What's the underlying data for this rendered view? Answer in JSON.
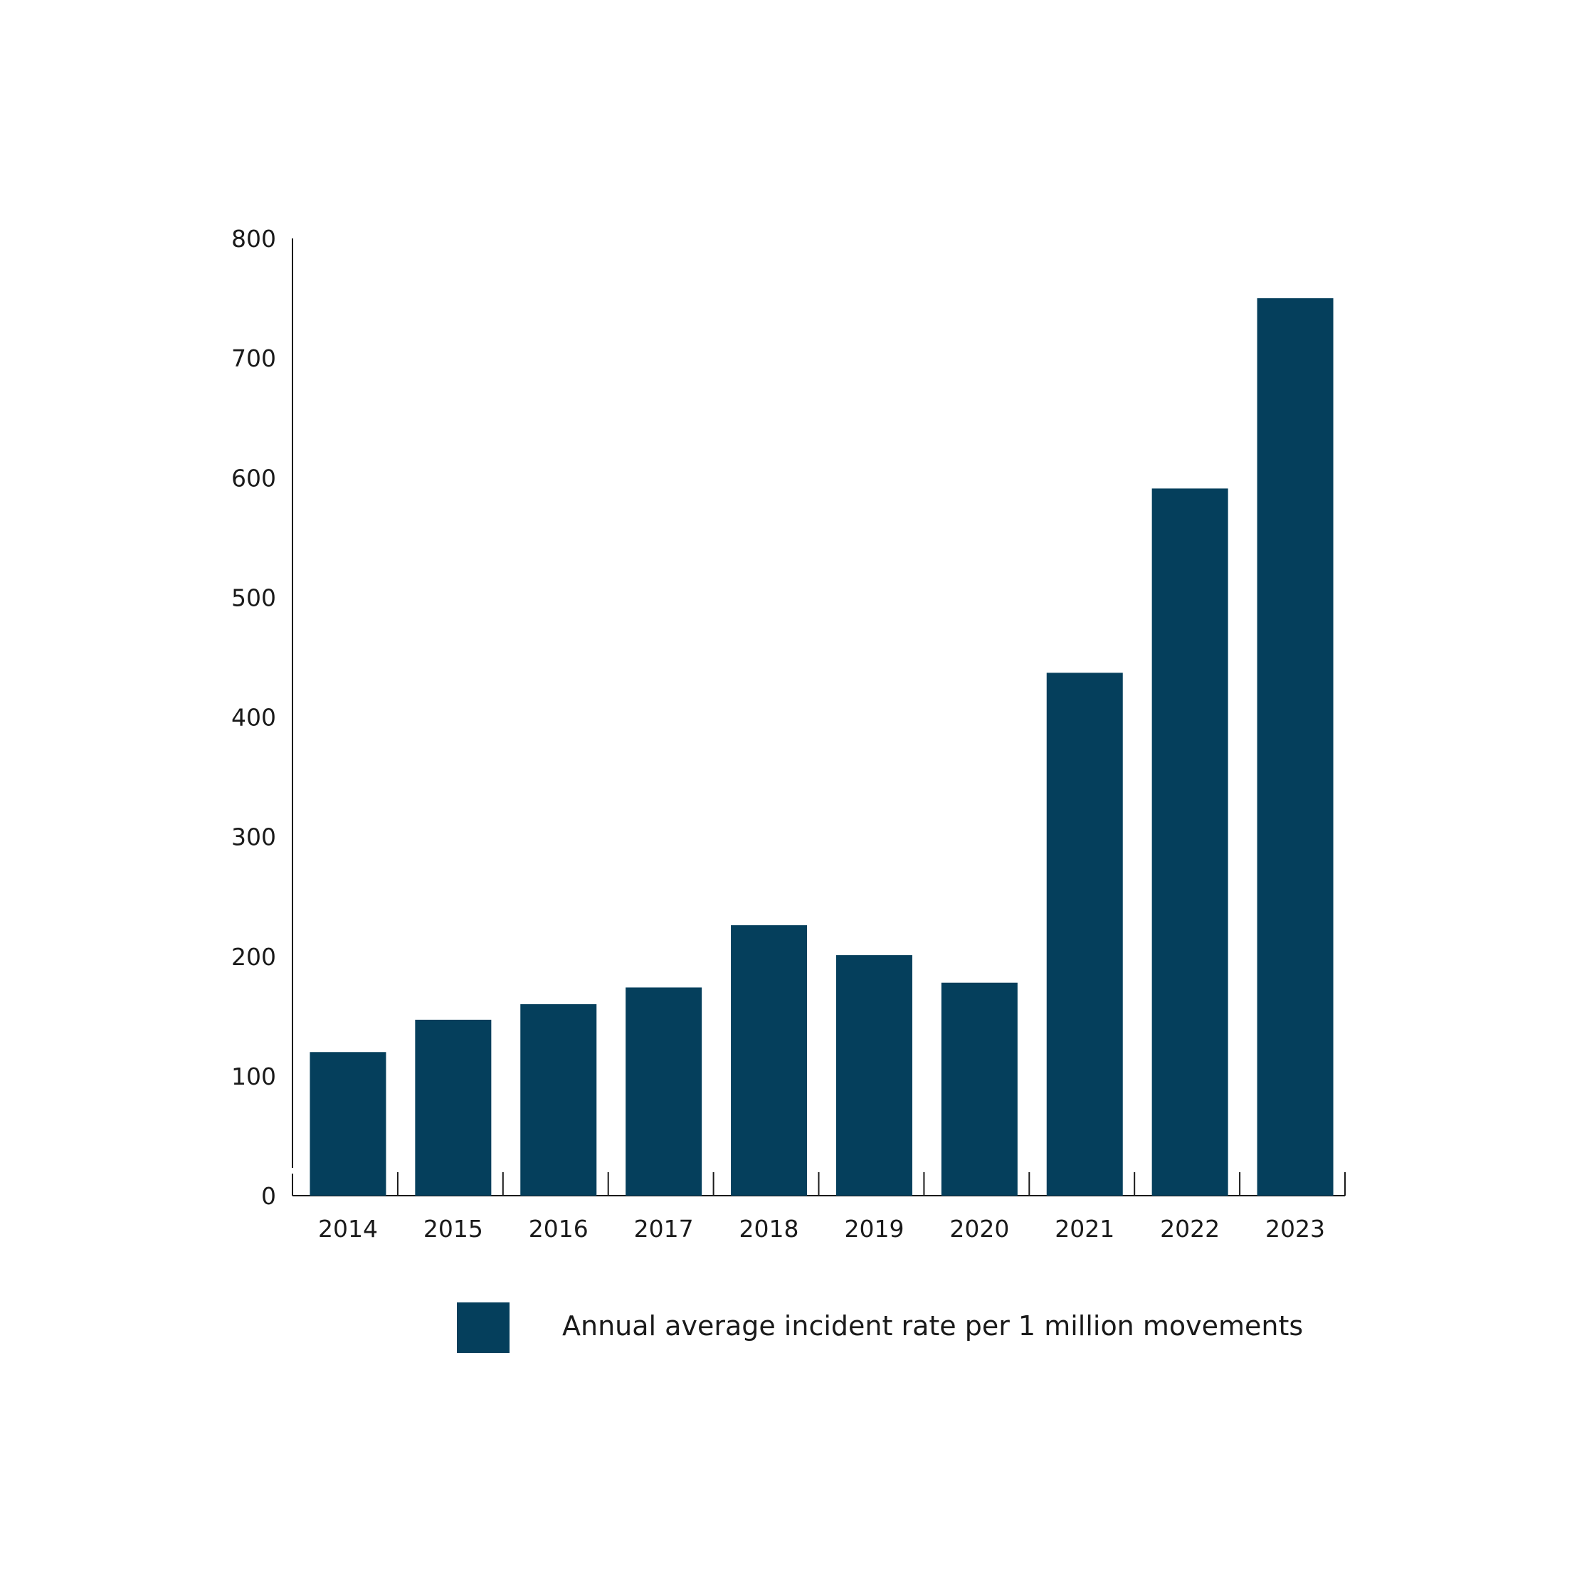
{
  "chart_data": {
    "type": "bar",
    "categories": [
      "2014",
      "2015",
      "2016",
      "2017",
      "2018",
      "2019",
      "2020",
      "2021",
      "2022",
      "2023"
    ],
    "series": [
      {
        "name": "Annual average incident rate per 1 million movements",
        "values": [
          120,
          147,
          160,
          174,
          226,
          201,
          178,
          437,
          591,
          750
        ],
        "color": "#053f5c"
      }
    ],
    "title": "",
    "xlabel": "",
    "ylabel": "",
    "ylim": [
      0,
      800
    ],
    "yticks": [
      "0",
      "100",
      "200",
      "300",
      "400",
      "500",
      "600",
      "700",
      "800"
    ],
    "grid": false,
    "legend_position": "bottom-center"
  }
}
